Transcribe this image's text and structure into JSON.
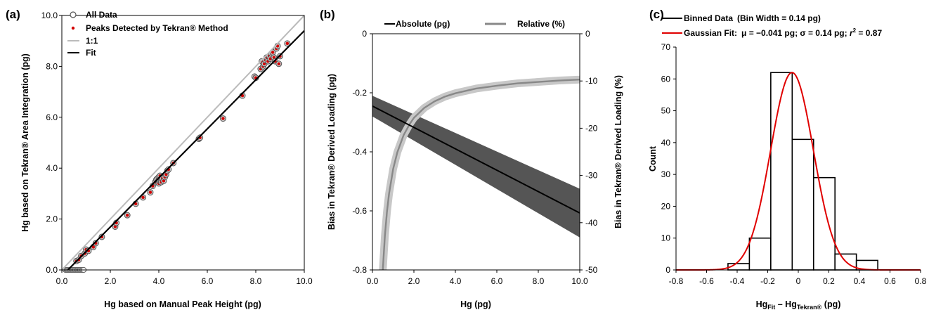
{
  "chart_data": [
    {
      "type": "scatter",
      "panel_label": "(a)",
      "xlabel": "Hg based on Manual Peak Height (pg)",
      "ylabel": "Hg based on Tekran® Area Integration (pg)",
      "xlim": [
        0,
        10
      ],
      "ylim": [
        0,
        10
      ],
      "x_ticks": [
        "0.0",
        "2.0",
        "4.0",
        "6.0",
        "8.0",
        "10.0"
      ],
      "y_ticks": [
        "0.0",
        "2.0",
        "4.0",
        "6.0",
        "8.0",
        "10.0"
      ],
      "grid": false,
      "legend": "top-left",
      "legend_entries": [
        "All Data",
        "Peaks Detected by Tekran® Method",
        "1:1",
        "Fit"
      ],
      "series": [
        {
          "name": "All Data",
          "style": "open-circle",
          "color": "#555555",
          "x": [
            0.15,
            0.2,
            0.25,
            0.3,
            0.35,
            0.4,
            0.45,
            0.5,
            0.55,
            0.6,
            0.65,
            0.7,
            0.75,
            0.8,
            0.85,
            0.9
          ],
          "y": [
            0,
            0,
            0,
            0,
            0,
            0,
            0,
            0,
            0,
            0,
            0,
            0,
            0,
            0,
            0,
            0
          ]
        },
        {
          "name": "Peaks Detected by Tekran® Method",
          "style": "grey-circle-red-dot",
          "color": "#d40000",
          "x": [
            0.6,
            0.7,
            0.8,
            0.95,
            1.0,
            1.1,
            1.3,
            1.4,
            1.65,
            2.2,
            2.25,
            2.7,
            3.05,
            3.35,
            3.65,
            3.75,
            3.85,
            3.9,
            3.95,
            4.0,
            4.0,
            4.05,
            4.05,
            4.1,
            4.1,
            4.15,
            4.2,
            4.25,
            4.3,
            4.35,
            4.4,
            4.6,
            5.65,
            5.7,
            6.65,
            7.45,
            7.95,
            8.0,
            8.2,
            8.25,
            8.3,
            8.35,
            8.4,
            8.45,
            8.5,
            8.55,
            8.6,
            8.65,
            8.7,
            8.75,
            8.8,
            8.85,
            8.9,
            8.95,
            9.0,
            9.3
          ],
          "y": [
            0.35,
            0.4,
            0.55,
            0.65,
            0.8,
            0.75,
            0.9,
            1.05,
            1.3,
            1.7,
            1.85,
            2.15,
            2.6,
            2.85,
            3.05,
            3.3,
            3.45,
            3.55,
            3.6,
            3.4,
            3.65,
            3.5,
            3.7,
            3.55,
            3.45,
            3.6,
            3.5,
            3.65,
            3.75,
            3.9,
            3.95,
            4.2,
            5.15,
            5.2,
            5.95,
            6.85,
            7.6,
            7.55,
            7.9,
            8.2,
            8.0,
            8.1,
            8.25,
            8.35,
            8.2,
            8.4,
            8.3,
            8.5,
            8.55,
            8.35,
            8.2,
            8.7,
            8.8,
            8.1,
            8.4,
            8.9
          ]
        }
      ],
      "lines": [
        {
          "name": "1:1",
          "color": "#bbbbbb",
          "x": [
            0,
            10
          ],
          "y": [
            0,
            10
          ]
        },
        {
          "name": "Fit",
          "color": "#000000",
          "x": [
            0,
            10
          ],
          "y": [
            -0.24,
            9.4
          ]
        }
      ]
    },
    {
      "type": "line",
      "panel_label": "(b)",
      "xlabel": "Hg (pg)",
      "ylabel": "Bias in Tekran® Derived Loading (pg)",
      "y2label": "Bias in Tekran® Derived Loading (%)",
      "xlim": [
        0,
        10
      ],
      "ylim": [
        -0.8,
        0
      ],
      "y2lim": [
        -50,
        0
      ],
      "x_ticks": [
        "0.0",
        "2.0",
        "4.0",
        "6.0",
        "8.0",
        "10.0"
      ],
      "y_ticks": [
        "-0.8",
        "-0.6",
        "-0.4",
        "-0.2",
        "0"
      ],
      "y2_ticks": [
        "-50",
        "-40",
        "-30",
        "-20",
        "-10",
        "0"
      ],
      "grid": false,
      "legend": "top",
      "legend_entries": [
        "Absolute (pg)",
        "Relative (%)"
      ],
      "series": [
        {
          "name": "Absolute (pg)",
          "axis": "left",
          "color": "#000000",
          "band_color": "#555555",
          "x": [
            0,
            10
          ],
          "y": [
            -0.245,
            -0.607
          ],
          "lower": [
            -0.28,
            -0.69
          ],
          "upper": [
            -0.21,
            -0.525
          ]
        },
        {
          "name": "Relative (%)",
          "axis": "right",
          "color": "#888888",
          "band_color": "#c8c8c8",
          "x": [
            0.5,
            0.6,
            0.7,
            0.8,
            1.0,
            1.2,
            1.5,
            1.8,
            2.0,
            2.5,
            3.0,
            3.5,
            4.0,
            5.0,
            6.0,
            7.0,
            8.0,
            9.0,
            10.0
          ],
          "y": [
            -50,
            -42.8,
            -37.7,
            -33.9,
            -28.6,
            -25.1,
            -21.5,
            -19.1,
            -17.8,
            -15.7,
            -14.3,
            -13.3,
            -12.6,
            -11.6,
            -11.0,
            -10.5,
            -10.2,
            -9.9,
            -9.7
          ]
        }
      ]
    },
    {
      "type": "bar",
      "panel_label": "(c)",
      "xlabel": "Hg",
      "xlabel_sub1": "Fit",
      "xlabel_mid": " – Hg",
      "xlabel_sub2": "Tekran®",
      "xlabel_tail": " (pg)",
      "ylabel": "Count",
      "xlim": [
        -0.8,
        0.8
      ],
      "ylim": [
        0,
        70
      ],
      "x_ticks": [
        "-0.8",
        "-0.6",
        "-0.4",
        "-0.2",
        "0",
        "0.2",
        "0.4",
        "0.6",
        "0.8"
      ],
      "y_ticks": [
        "0",
        "10",
        "20",
        "30",
        "40",
        "50",
        "60",
        "70"
      ],
      "grid": false,
      "legend": "top",
      "bin_edges": [
        -0.46,
        -0.32,
        -0.18,
        -0.04,
        0.1,
        0.24,
        0.38,
        0.52
      ],
      "values": [
        2,
        10,
        62,
        41,
        29,
        5,
        3
      ],
      "gaussian": {
        "mu": -0.041,
        "sigma": 0.14,
        "peak": 62,
        "color": "#e00000"
      },
      "legend_entries": [
        {
          "name": "Binned Data",
          "note": "(Bin Width = 0.14 pg)",
          "color": "#000000"
        },
        {
          "name": "Gaussian Fit:",
          "note_mu": "μ = −0.041 pg; σ = 0.14 pg; ",
          "note_r": "r",
          "note_r_sup": "2",
          "note_tail": " = 0.87",
          "color": "#e00000"
        }
      ]
    }
  ]
}
